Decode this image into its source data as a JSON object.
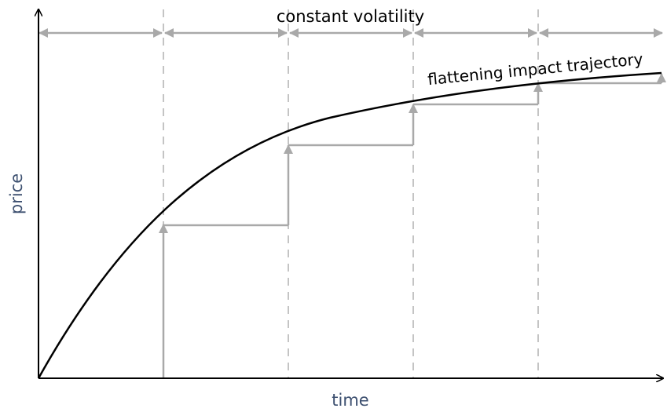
{
  "labels": {
    "top": "constant volatility",
    "curve": "flattening impact trajectory",
    "xaxis": "time",
    "yaxis": "price"
  },
  "colors": {
    "curve": "#000000",
    "axes": "#000000",
    "steps": "#a9a9a9",
    "dashed": "#c4c4c4",
    "axis_label": "#3d5070"
  },
  "steps": {
    "count": 5,
    "levels": [
      0.41,
      0.62,
      0.73,
      0.79,
      0.81
    ]
  }
}
